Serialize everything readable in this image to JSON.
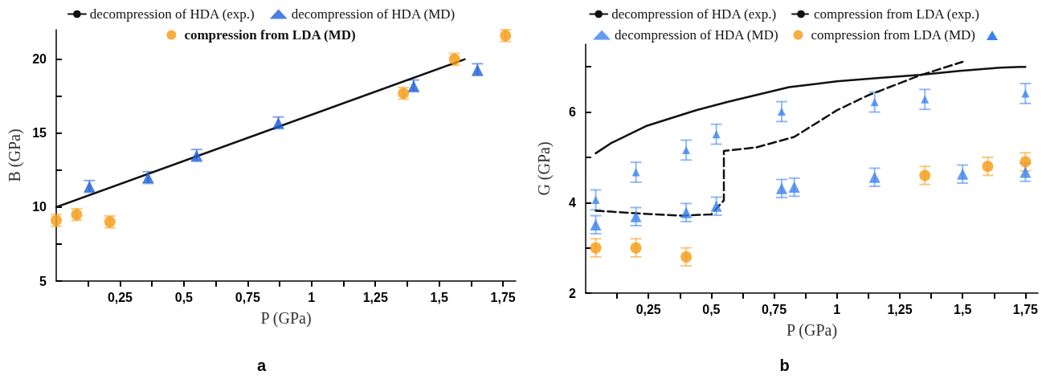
{
  "chart_data": [
    {
      "type": "scatter",
      "title": "a",
      "xlabel": "P (GPa)",
      "ylabel": "B (GPa)",
      "legend": "top",
      "grid": false,
      "xlim": [
        0,
        1.8
      ],
      "ylim": [
        5,
        22
      ],
      "xticks": [
        {
          "value": 0.125,
          "label": null
        },
        {
          "value": 0.25,
          "label": "0,25"
        },
        {
          "value": 0.375,
          "label": null
        },
        {
          "value": 0.5,
          "label": "0,5"
        },
        {
          "value": 0.625,
          "label": null
        },
        {
          "value": 0.75,
          "label": "0,75"
        },
        {
          "value": 0.875,
          "label": null
        },
        1,
        {
          "value": 1.125,
          "label": null
        },
        {
          "value": 1.25,
          "label": "1,25"
        },
        {
          "value": 1.375,
          "label": null
        },
        {
          "value": 1.5,
          "label": "1,5"
        },
        {
          "value": 1.625,
          "label": null
        },
        {
          "value": 1.75,
          "label": "1,75"
        }
      ],
      "yticks": [
        5,
        {
          "value": 7.5,
          "label": null
        },
        10,
        {
          "value": 12.5,
          "label": null
        },
        15,
        {
          "value": 17.5,
          "label": null
        },
        20
      ],
      "series": [
        {
          "name": "decompression of HDA (exp.)",
          "type": "line",
          "line_style": "solid",
          "marker": "none",
          "color": "#111111",
          "x": [
            0,
            1.6
          ],
          "values": [
            10,
            20
          ]
        },
        {
          "name": "decompression of HDA (MD)",
          "marker": "triangle",
          "color": "#1f5fd6",
          "x": [
            0.13,
            0.36,
            0.55,
            0.87,
            1.4,
            1.65
          ],
          "values": [
            11.4,
            12.0,
            13.5,
            15.7,
            18.2,
            19.3
          ],
          "errors": [
            0.4,
            0.4,
            0.4,
            0.4,
            0.4,
            0.4
          ]
        },
        {
          "name": "compression from LDA (MD)",
          "marker": "circle",
          "color": "#f59a12",
          "x": [
            0,
            0.08,
            0.21,
            1.36,
            1.56,
            1.76
          ],
          "values": [
            9.1,
            9.5,
            9.0,
            17.7,
            20.0,
            21.6
          ],
          "errors": [
            0.4,
            0.4,
            0.4,
            0.4,
            0.4,
            0.4
          ]
        }
      ]
    },
    {
      "type": "scatter",
      "title": "b",
      "xlabel": "P (GPa)",
      "ylabel": "G (GPa)",
      "legend": "top",
      "grid": false,
      "xlim": [
        0,
        1.8
      ],
      "ylim": [
        2,
        7.5
      ],
      "xticks": [
        {
          "value": 0.125,
          "label": null
        },
        {
          "value": 0.25,
          "label": "0,25"
        },
        {
          "value": 0.375,
          "label": null
        },
        {
          "value": 0.5,
          "label": "0,5"
        },
        {
          "value": 0.625,
          "label": null
        },
        {
          "value": 0.75,
          "label": "0,75"
        },
        {
          "value": 0.875,
          "label": null
        },
        1,
        {
          "value": 1.125,
          "label": null
        },
        {
          "value": 1.25,
          "label": "1,25"
        },
        {
          "value": 1.375,
          "label": null
        },
        {
          "value": 1.5,
          "label": "1,5"
        },
        {
          "value": 1.625,
          "label": null
        },
        {
          "value": 1.75,
          "label": "1,75"
        }
      ],
      "yticks": [
        2,
        {
          "value": 3,
          "label": null
        },
        4,
        {
          "value": 5,
          "label": null
        },
        6,
        {
          "value": 7,
          "label": null
        }
      ],
      "series": [
        {
          "name": "decompression of HDA (exp.)",
          "type": "line",
          "line_style": "solid",
          "marker": "none",
          "color": "#111111",
          "x": [
            0.04,
            0.1,
            0.24,
            0.44,
            0.57,
            0.81,
            1.0,
            1.16,
            1.33,
            1.49,
            1.65,
            1.75
          ],
          "values": [
            5.09,
            5.31,
            5.69,
            6.04,
            6.23,
            6.55,
            6.68,
            6.75,
            6.82,
            6.91,
            6.98,
            7.0
          ]
        },
        {
          "name": "compression from LDA (exp.)",
          "type": "line",
          "line_style": "dashed",
          "marker": "none",
          "color": "#111111",
          "x": [
            0.04,
            0.21,
            0.39,
            0.5,
            0.55,
            0.55,
            0.68,
            0.83,
            1.0,
            1.12,
            1.33,
            1.5
          ],
          "values": [
            3.82,
            3.76,
            3.71,
            3.74,
            4.05,
            5.14,
            5.22,
            5.45,
            6.04,
            6.36,
            6.81,
            7.11
          ]
        },
        {
          "name": "decompression of HDA (MD)",
          "marker": "triangle",
          "color": "#3b82f0",
          "x": [
            0.04,
            0.2,
            0.4,
            0.52,
            0.78,
            0.83,
            1.15,
            1.5,
            1.75
          ],
          "values": [
            3.51,
            3.69,
            3.78,
            3.92,
            4.31,
            4.34,
            4.56,
            4.63,
            4.67
          ],
          "errors": [
            0.2,
            0.2,
            0.2,
            0.2,
            0.2,
            0.2,
            0.2,
            0.2,
            0.2
          ]
        },
        {
          "name": "compression from LDA (MD)",
          "marker": "circle",
          "color": "#f59a12",
          "x": [
            0.04,
            0.2,
            0.4,
            1.35,
            1.6,
            1.75
          ],
          "values": [
            3.0,
            3.0,
            2.8,
            4.6,
            4.8,
            4.9
          ],
          "errors": [
            0.2,
            0.2,
            0.2,
            0.2,
            0.2,
            0.2
          ]
        },
        {
          "marker": "triangle",
          "color": "#3b82f0",
          "x": [
            0.04,
            0.2,
            0.4,
            0.52,
            0.78,
            1.15,
            1.35,
            1.75
          ],
          "values": [
            4.06,
            4.67,
            5.16,
            5.51,
            6.01,
            6.22,
            6.28,
            6.41
          ],
          "errors": [
            0.22,
            0.22,
            0.22,
            0.22,
            0.22,
            0.22,
            0.22,
            0.22
          ]
        }
      ]
    }
  ]
}
